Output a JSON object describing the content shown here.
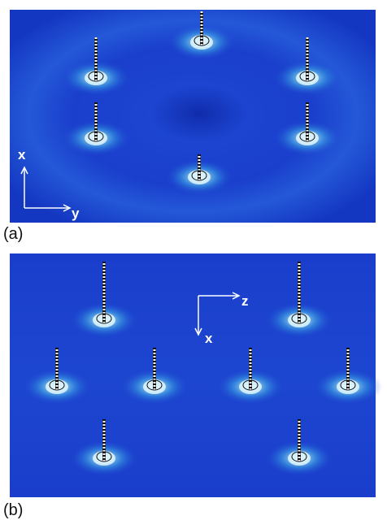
{
  "panels": [
    {
      "label": "(a)",
      "axes": {
        "vertical": "x",
        "horizontal": "y"
      }
    },
    {
      "label": "(b)",
      "axes": {
        "horizontal": "z",
        "vertical": "x"
      }
    }
  ]
}
